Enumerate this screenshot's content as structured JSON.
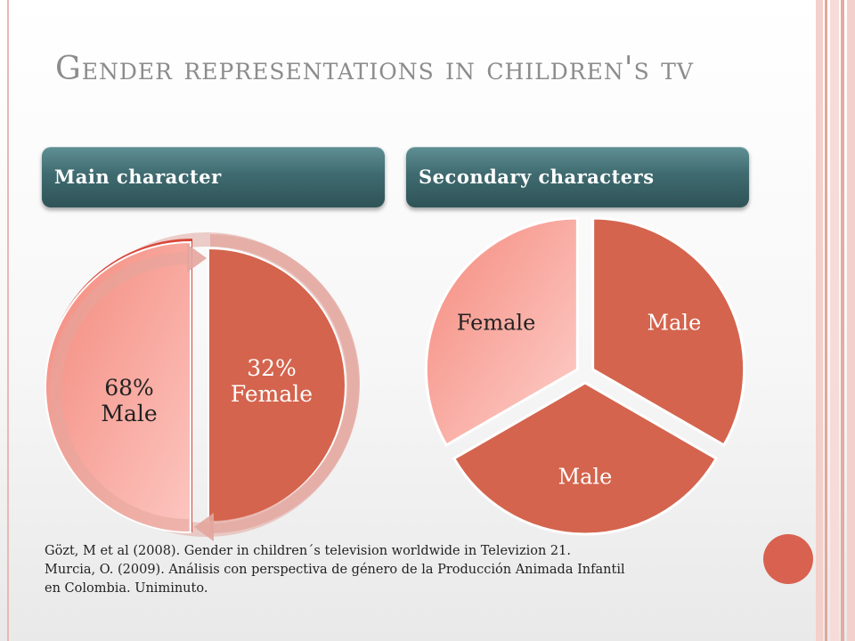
{
  "slide": {
    "title": "Gender representations in children's tv",
    "main_header": "Main character",
    "secondary_header": "Secondary characters",
    "references": [
      "Gözt, M et al (2008). Gender in children´s television  worldwide in Televizion 21.",
      "Murcia, O. (2009). Análisis con perspectiva de género de la Producción Animada Infantil",
      "en Colombia. Uniminuto."
    ]
  },
  "colors": {
    "accent": "#d4644d",
    "pink": "#f6a8a0",
    "header": "#3f6b70",
    "title": "#8c8c8c"
  },
  "chart_data": [
    {
      "type": "pie",
      "title": "Main character",
      "slices": [
        {
          "label": "32% Female",
          "label_lines": [
            "32%",
            "Female"
          ],
          "value": 32
        },
        {
          "label": "68% Male",
          "label_lines": [
            "68%",
            "Male"
          ],
          "value": 68
        }
      ]
    },
    {
      "type": "pie",
      "title": "Secondary characters",
      "slices": [
        {
          "label": "Male",
          "value": 1
        },
        {
          "label": "Male",
          "value": 1
        },
        {
          "label": "Female",
          "value": 1
        }
      ]
    }
  ]
}
